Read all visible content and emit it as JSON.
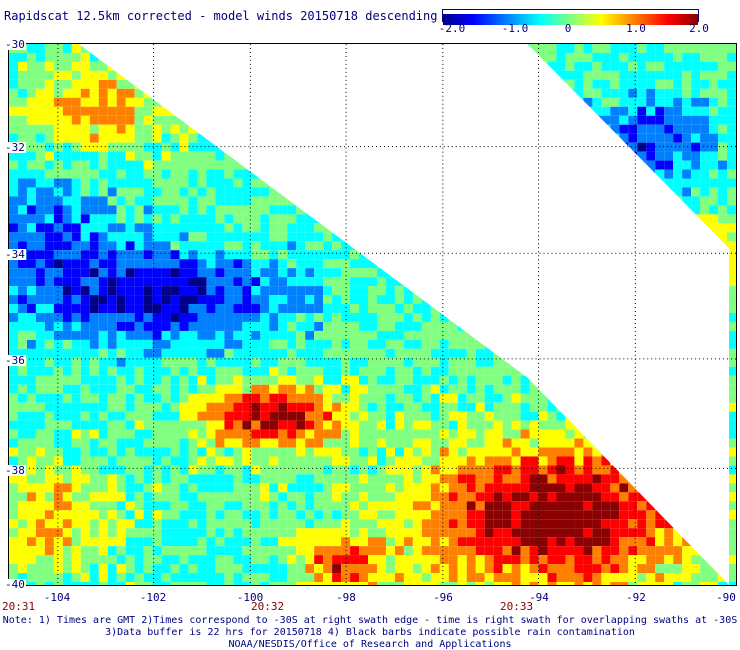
{
  "title": "Rapidscat 12.5km corrected - model winds 20150718 descending",
  "colorbar": {
    "ticks": [
      "-2.0",
      "-1.0",
      "0",
      "1.0",
      "2.0"
    ],
    "range": [
      -2.0,
      2.0
    ],
    "colors": [
      "#00008b",
      "#0000ff",
      "#0080ff",
      "#00ffff",
      "#80ff80",
      "#ffff00",
      "#ff8000",
      "#ff0000",
      "#8b0000"
    ]
  },
  "map": {
    "lat_labels": [
      "-30",
      "-32",
      "-34",
      "-36",
      "-38",
      "-40"
    ],
    "lon_labels": [
      "-104",
      "-102",
      "-100",
      "-98",
      "-96",
      "-94",
      "-92",
      "-90"
    ],
    "time_labels": [
      "20:31",
      "20:32",
      "20:33"
    ]
  },
  "notes": [
    "Note: 1) Times are GMT 2)Times correspond to -30S at right swath edge - time is right swath for overlapping swaths at -30S",
    "3)Data buffer is 22 hrs for 20150718 4) Black barbs indicate possible rain contamination",
    "NOAA/NESDIS/Office of Research and Applications"
  ]
}
